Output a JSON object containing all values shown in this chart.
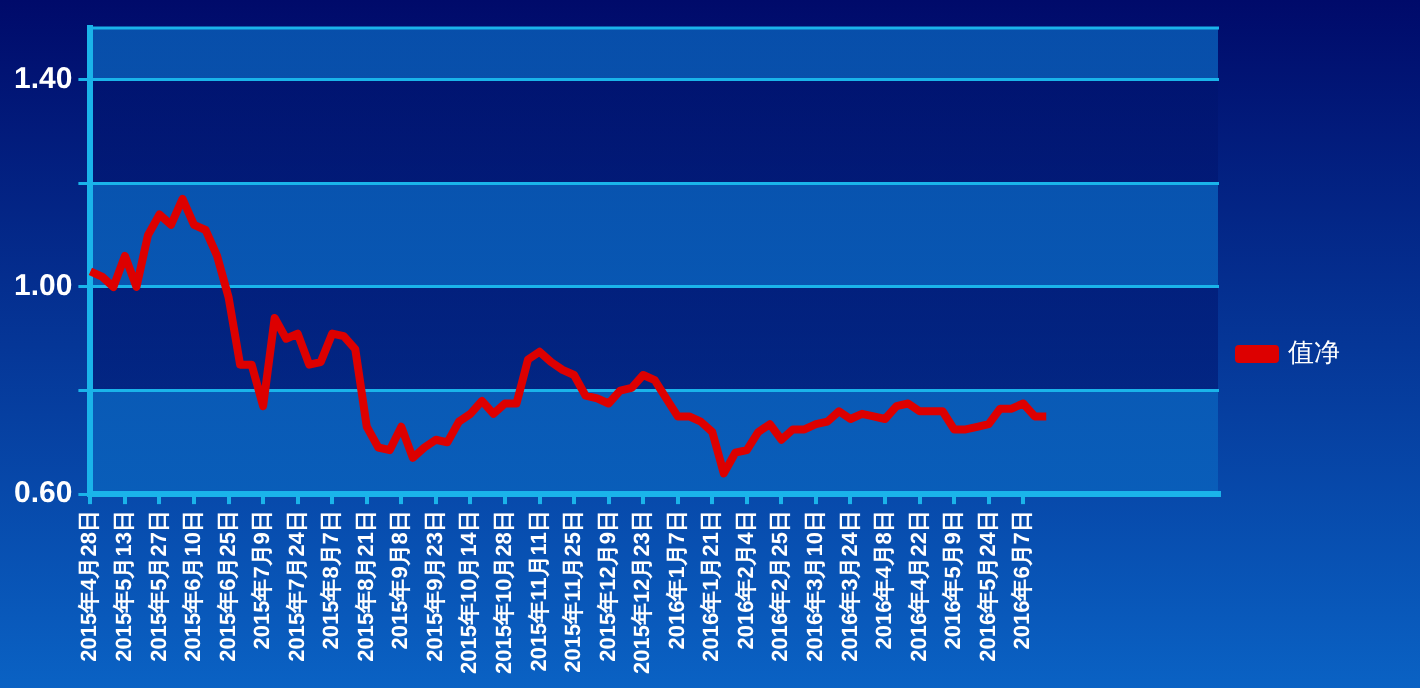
{
  "chart_data": {
    "type": "line",
    "categories": [
      "2015年4月28日",
      null,
      null,
      "2015年5月13日",
      null,
      null,
      "2015年5月27日",
      null,
      null,
      "2015年6月10日",
      null,
      null,
      "2015年6月25日",
      null,
      null,
      "2015年7月9日",
      null,
      null,
      "2015年7月24日",
      null,
      null,
      "2015年8月7日",
      null,
      null,
      "2015年8月21日",
      null,
      null,
      "2015年9月8日",
      null,
      null,
      "2015年9月23日",
      null,
      null,
      "2015年10月14日",
      null,
      null,
      "2015年10月28日",
      null,
      null,
      "2015年11月11日",
      null,
      null,
      "2015年11月25日",
      null,
      null,
      "2015年12月9日",
      null,
      null,
      "2015年12月23日",
      null,
      null,
      "2016年1月7日",
      null,
      null,
      "2016年1月21日",
      null,
      null,
      "2016年2月4日",
      null,
      null,
      "2016年2月25日",
      null,
      null,
      "2016年3月10日",
      null,
      null,
      "2016年3月24日",
      null,
      null,
      "2016年4月8日",
      null,
      null,
      "2016年4月22日",
      null,
      null,
      "2016年5月9日",
      null,
      null,
      "2016年5月24日",
      null,
      null,
      "2016年6月7日",
      null,
      null,
      null,
      null,
      null,
      null,
      null,
      null,
      null,
      null,
      null,
      null,
      null,
      null,
      null,
      null,
      null
    ],
    "series": [
      {
        "name": "值净",
        "color": "#dd0000",
        "values": [
          1.03,
          1.02,
          1.0,
          1.06,
          1.0,
          1.1,
          1.14,
          1.12,
          1.17,
          1.12,
          1.11,
          1.06,
          0.98,
          0.85,
          0.85,
          0.77,
          0.94,
          0.9,
          0.91,
          0.85,
          0.855,
          0.91,
          0.905,
          0.88,
          0.73,
          0.69,
          0.685,
          0.73,
          0.67,
          0.69,
          0.705,
          0.7,
          0.74,
          0.755,
          0.78,
          0.755,
          0.775,
          0.775,
          0.86,
          0.875,
          0.855,
          0.84,
          0.83,
          0.79,
          0.785,
          0.775,
          0.8,
          0.805,
          0.83,
          0.82,
          0.785,
          0.75,
          0.75,
          0.74,
          0.72,
          0.64,
          0.68,
          0.685,
          0.72,
          0.735,
          0.705,
          0.725,
          0.725,
          0.735,
          0.74,
          0.76,
          0.745,
          0.755,
          0.75,
          0.745,
          0.77,
          0.775,
          0.76,
          0.76,
          0.76,
          0.725,
          0.725,
          0.73,
          0.735,
          0.765,
          0.765,
          0.775,
          0.75,
          0.75,
          null,
          null,
          null,
          null,
          null,
          null,
          null,
          null,
          null,
          null,
          null,
          null,
          null,
          null,
          null
        ]
      }
    ],
    "ylim": [
      0.6,
      1.5
    ],
    "yticks": [
      {
        "value": 0.6,
        "label": "0.60"
      },
      {
        "value": 0.8,
        "label": null
      },
      {
        "value": 1.0,
        "label": "1.00"
      },
      {
        "value": 1.2,
        "label": null
      },
      {
        "value": 1.4,
        "label": "1.40"
      }
    ],
    "grid": "y",
    "legend": "right",
    "marker": "none",
    "line_style": "solid"
  }
}
